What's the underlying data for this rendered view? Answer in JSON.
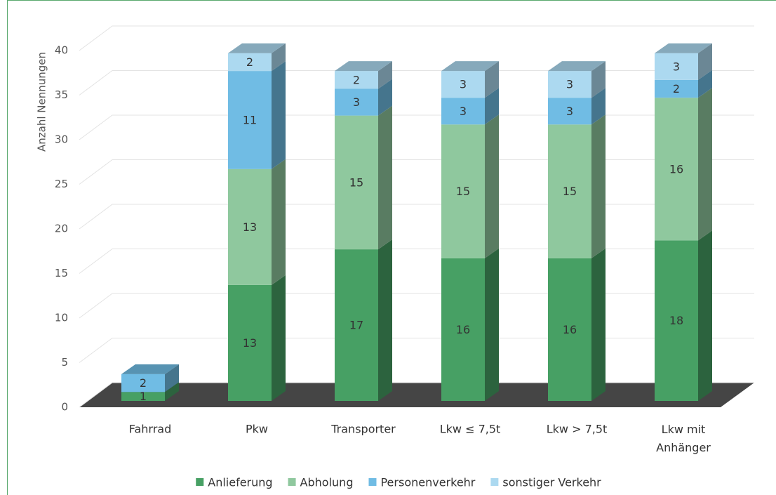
{
  "chart_data": {
    "type": "bar3d_stacked",
    "y_label": "Anzahl Nennungen",
    "categories": [
      "Fahrrad",
      "Pkw",
      "Transporter",
      "Lkw ≤ 7,5t",
      "Lkw > 7,5t",
      "Lkw mit Anhänger"
    ],
    "series": [
      {
        "name": "Anlieferung",
        "color": "#47a064",
        "values": [
          1,
          13,
          17,
          16,
          16,
          18
        ]
      },
      {
        "name": "Abholung",
        "color": "#8fc89e",
        "values": [
          null,
          13,
          15,
          15,
          15,
          16
        ]
      },
      {
        "name": "Personenverkehr",
        "color": "#70bce4",
        "values": [
          2,
          11,
          3,
          3,
          3,
          2
        ]
      },
      {
        "name": "sonstiger Verkehr",
        "color": "#acd9f0",
        "values": [
          null,
          2,
          2,
          3,
          3,
          3
        ]
      }
    ],
    "ylim": [
      0,
      40
    ],
    "yticks": [
      0,
      5,
      10,
      15,
      20,
      25,
      30,
      35,
      40
    ],
    "grid": true,
    "legend": "bottom"
  }
}
